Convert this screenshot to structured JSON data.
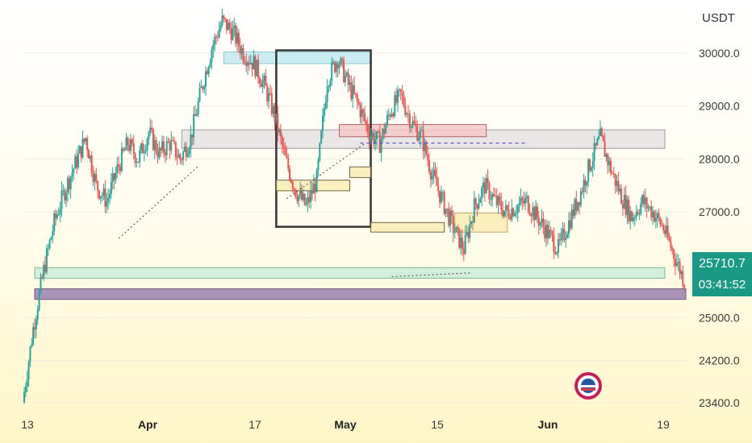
{
  "currency": "USDT",
  "current_price": "25710.7",
  "countdown": "03:41:52",
  "colors": {
    "up": "#26a69a",
    "down": "#ef5350",
    "price_tag": "#1a9a86",
    "zone_cyan": "#bfeaf0",
    "zone_grey": "#e6e2e2",
    "zone_red": "#f5c8c8",
    "zone_yellow": "#fbecb5",
    "zone_green": "#c9ecd8",
    "zone_purple": "#9c7fb3"
  },
  "chart_data": {
    "type": "candlestick",
    "title": "",
    "xlabel": "",
    "ylabel": "USDT",
    "x_ticks": [
      "13",
      "Apr",
      "17",
      "May",
      "15",
      "Jun",
      "19"
    ],
    "y_ticks": [
      "30000.0",
      "29000.0",
      "28000.0",
      "27000.0",
      "25000.0",
      "24200.0",
      "23400.0"
    ],
    "ylim": [
      23400,
      31000
    ],
    "current_price": 25710.7,
    "series": [
      {
        "values": [
          [
            0,
            23400
          ],
          [
            2,
            24800
          ],
          [
            4,
            25900
          ],
          [
            6,
            26800
          ],
          [
            8,
            27400
          ],
          [
            10,
            27900
          ],
          [
            12,
            28400
          ],
          [
            14,
            27500
          ],
          [
            16,
            27200
          ],
          [
            18,
            27800
          ],
          [
            20,
            28300
          ],
          [
            22,
            28000
          ],
          [
            24,
            28500
          ],
          [
            26,
            28100
          ],
          [
            28,
            28300
          ],
          [
            30,
            28000
          ],
          [
            32,
            28400
          ],
          [
            34,
            29300
          ],
          [
            36,
            30100
          ],
          [
            38,
            30600
          ],
          [
            40,
            30400
          ],
          [
            42,
            30000
          ],
          [
            44,
            29800
          ],
          [
            46,
            29400
          ],
          [
            48,
            28800
          ],
          [
            50,
            28000
          ],
          [
            52,
            27400
          ],
          [
            54,
            27100
          ],
          [
            56,
            27600
          ],
          [
            58,
            29500
          ],
          [
            60,
            29900
          ],
          [
            62,
            29400
          ],
          [
            64,
            29000
          ],
          [
            66,
            28500
          ],
          [
            68,
            28300
          ],
          [
            70,
            28900
          ],
          [
            72,
            29200
          ],
          [
            74,
            28700
          ],
          [
            76,
            28400
          ],
          [
            78,
            27700
          ],
          [
            80,
            27200
          ],
          [
            82,
            26700
          ],
          [
            84,
            26300
          ],
          [
            86,
            27100
          ],
          [
            88,
            27500
          ],
          [
            90,
            27200
          ],
          [
            92,
            27000
          ],
          [
            94,
            27100
          ],
          [
            96,
            27200
          ],
          [
            98,
            26900
          ],
          [
            100,
            26600
          ],
          [
            102,
            26300
          ],
          [
            104,
            26800
          ],
          [
            106,
            27300
          ],
          [
            108,
            27900
          ],
          [
            110,
            28400
          ],
          [
            112,
            27800
          ],
          [
            114,
            27300
          ],
          [
            116,
            26900
          ],
          [
            118,
            27200
          ],
          [
            120,
            27000
          ],
          [
            122,
            26700
          ],
          [
            124,
            26200
          ],
          [
            126,
            25700
          ]
        ]
      }
    ],
    "annotations": {
      "zones": [
        {
          "name": "cyan-zone",
          "y1": 29800,
          "y2": 30020,
          "x1": 38,
          "x2": 66
        },
        {
          "name": "grey-zone",
          "y1": 28200,
          "y2": 28550,
          "x1": 30,
          "x2": 122
        },
        {
          "name": "red-zone",
          "y1": 28420,
          "y2": 28650,
          "x1": 60,
          "x2": 88
        },
        {
          "name": "dark-box",
          "y1": 26720,
          "y2": 30050,
          "x1": 48,
          "x2": 66
        },
        {
          "name": "yellow-zone-1",
          "y1": 27400,
          "y2": 27600,
          "x1": 48,
          "x2": 62
        },
        {
          "name": "yellow-zone-2",
          "y1": 27650,
          "y2": 27850,
          "x1": 62,
          "x2": 66
        },
        {
          "name": "yellow-zone-3",
          "y1": 26620,
          "y2": 26800,
          "x1": 66,
          "x2": 80
        },
        {
          "name": "yellow-zone-4",
          "y1": 26620,
          "y2": 26980,
          "x1": 82,
          "x2": 92
        },
        {
          "name": "green-zone",
          "y1": 25750,
          "y2": 25950,
          "x1": 2,
          "x2": 122
        },
        {
          "name": "purple-zone",
          "y1": 25350,
          "y2": 25550,
          "x1": 2,
          "x2": 126
        }
      ]
    }
  }
}
